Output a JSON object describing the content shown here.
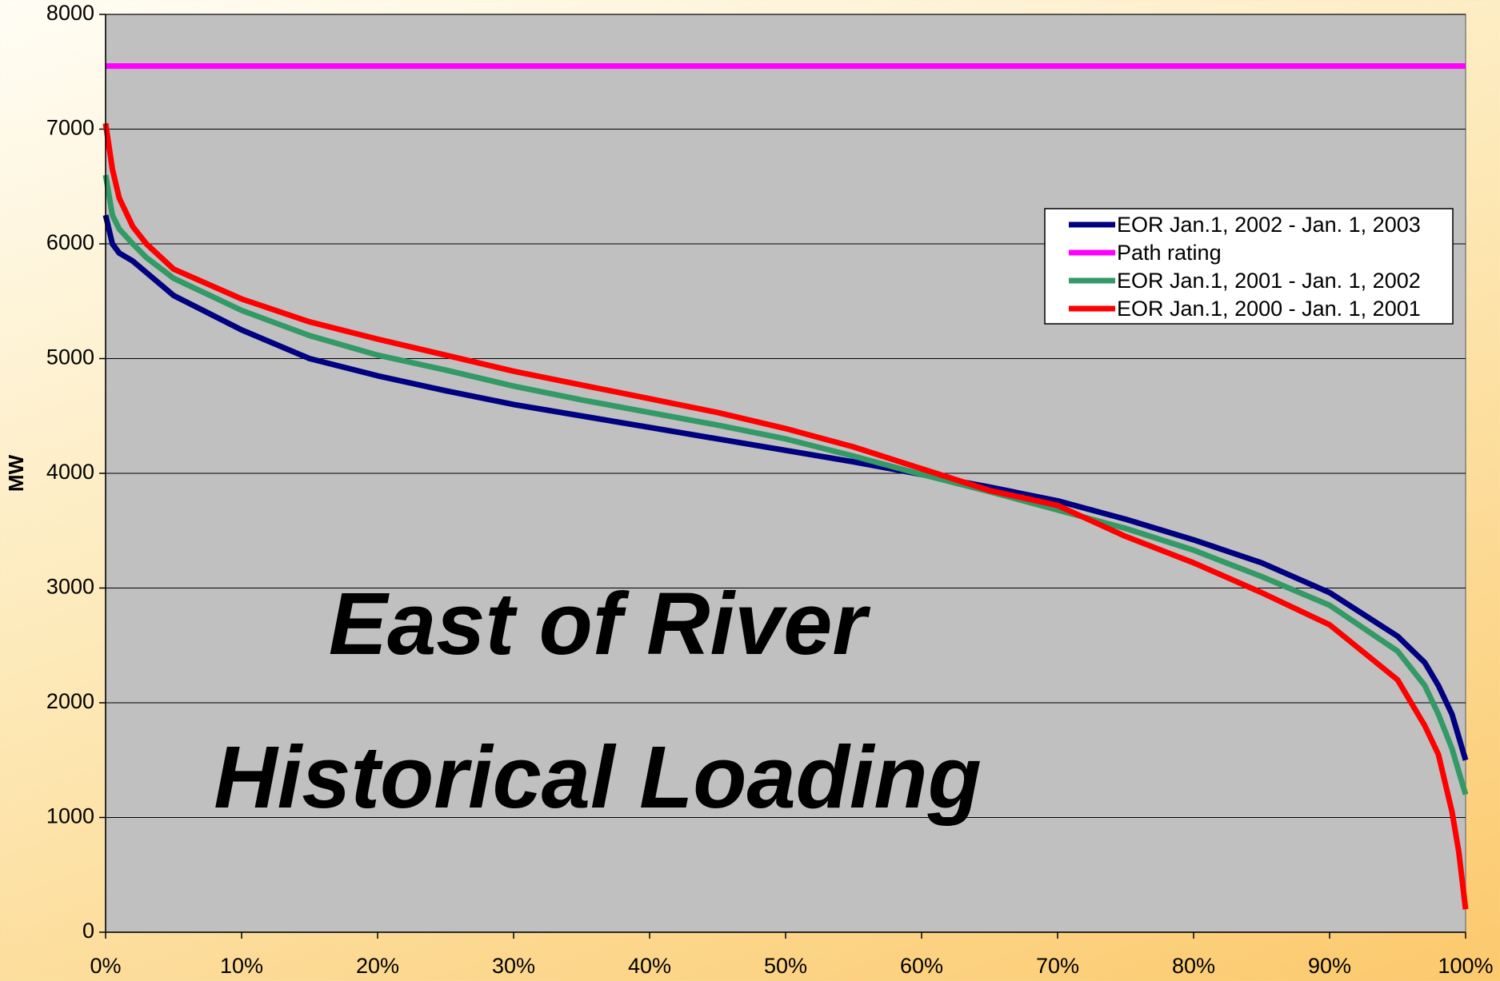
{
  "chart_data": {
    "type": "line",
    "annotations": [
      "East of River",
      "Historical Loading"
    ],
    "y_label": "MW",
    "x": [
      0,
      0.5,
      1,
      2,
      3,
      5,
      10,
      15,
      20,
      25,
      30,
      35,
      40,
      45,
      50,
      55,
      60,
      65,
      70,
      75,
      80,
      85,
      90,
      95,
      97,
      98,
      99,
      99.5,
      100
    ],
    "series": [
      {
        "name": "EOR Jan.1, 2002 - Jan. 1, 2003",
        "color": "#000080",
        "values": [
          6250,
          6000,
          5920,
          5850,
          5750,
          5550,
          5250,
          5000,
          4850,
          4720,
          4600,
          4500,
          4400,
          4300,
          4200,
          4100,
          3990,
          3880,
          3760,
          3600,
          3420,
          3220,
          2960,
          2580,
          2350,
          2150,
          1900,
          1700,
          1500
        ]
      },
      {
        "name": "Path rating",
        "color": "#ff00ff",
        "values": [
          7550,
          7550,
          7550,
          7550,
          7550,
          7550,
          7550,
          7550,
          7550,
          7550,
          7550,
          7550,
          7550,
          7550,
          7550,
          7550,
          7550,
          7550,
          7550,
          7550,
          7550,
          7550,
          7550,
          7550,
          7550,
          7550,
          7550,
          7550,
          7550
        ]
      },
      {
        "name": "EOR Jan.1, 2001 - Jan. 1, 2002",
        "color": "#339966",
        "values": [
          6600,
          6250,
          6130,
          6000,
          5880,
          5700,
          5420,
          5200,
          5030,
          4900,
          4760,
          4640,
          4530,
          4420,
          4300,
          4150,
          3990,
          3840,
          3680,
          3520,
          3330,
          3100,
          2850,
          2450,
          2150,
          1900,
          1600,
          1400,
          1200
        ]
      },
      {
        "name": "EOR Jan.1, 2000 - Jan. 1, 2001",
        "color": "#ff0000",
        "values": [
          7050,
          6650,
          6400,
          6150,
          6000,
          5780,
          5520,
          5320,
          5170,
          5030,
          4890,
          4770,
          4650,
          4530,
          4390,
          4230,
          4040,
          3850,
          3720,
          3450,
          3220,
          2960,
          2680,
          2200,
          1800,
          1550,
          1050,
          700,
          200
        ]
      }
    ],
    "xlim": [
      0,
      100
    ],
    "xticks": [
      {
        "value": 0,
        "label": "0%"
      },
      {
        "value": 10,
        "label": "10%"
      },
      {
        "value": 20,
        "label": "20%"
      },
      {
        "value": 30,
        "label": "30%"
      },
      {
        "value": 40,
        "label": "40%"
      },
      {
        "value": 50,
        "label": "50%"
      },
      {
        "value": 60,
        "label": "60%"
      },
      {
        "value": 70,
        "label": "70%"
      },
      {
        "value": 80,
        "label": "80%"
      },
      {
        "value": 90,
        "label": "90%"
      },
      {
        "value": 100,
        "label": "100%"
      }
    ],
    "ylim": [
      0,
      8000
    ],
    "yticks": [
      0,
      1000,
      2000,
      3000,
      4000,
      5000,
      6000,
      7000,
      8000
    ],
    "grid": true,
    "legend": "upper right",
    "plot_background": "#c0c0c0"
  }
}
